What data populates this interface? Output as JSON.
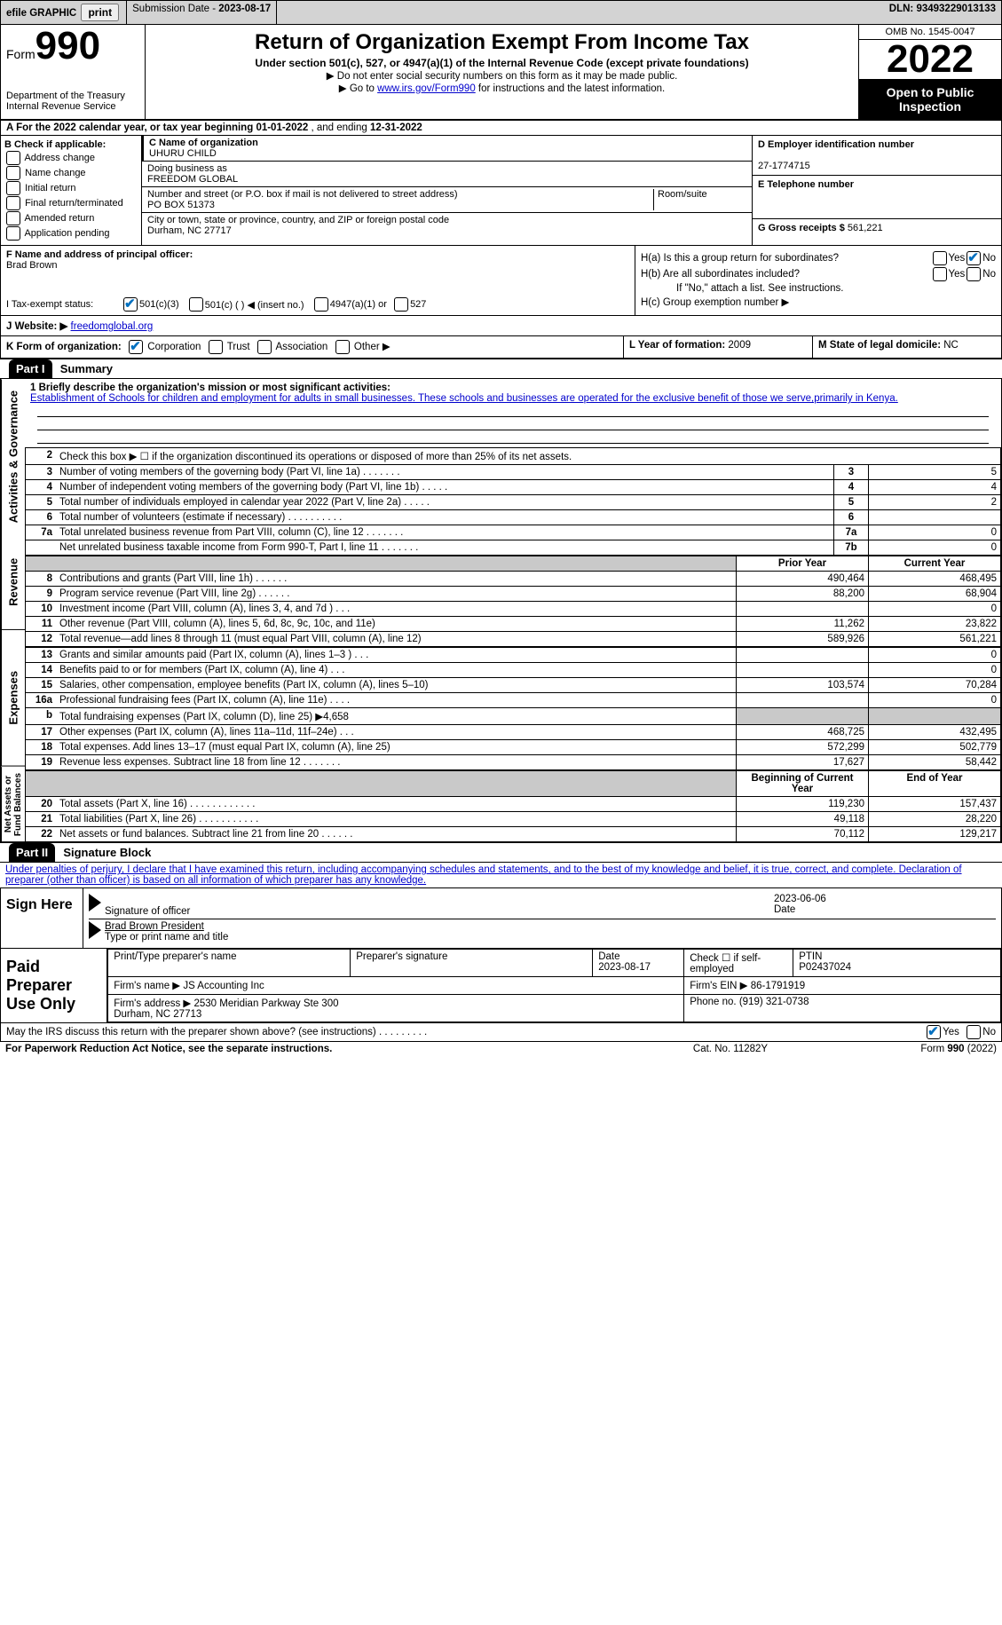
{
  "topbar": {
    "efile": "efile GRAPHIC",
    "print": "print",
    "submission_label": "Submission Date - ",
    "submission_date": "2023-08-17",
    "dln_label": "DLN: ",
    "dln": "93493229013133"
  },
  "header": {
    "form_label": "Form",
    "form_num": "990",
    "dept": "Department of the Treasury\nInternal Revenue Service",
    "title": "Return of Organization Exempt From Income Tax",
    "subtitle": "Under section 501(c), 527, or 4947(a)(1) of the Internal Revenue Code (except private foundations)",
    "note1": "▶ Do not enter social security numbers on this form as it may be made public.",
    "note2_pre": "▶ Go to ",
    "note2_link": "www.irs.gov/Form990",
    "note2_post": " for instructions and the latest information.",
    "omb": "OMB No. 1545-0047",
    "year": "2022",
    "open": "Open to Public Inspection"
  },
  "rowA": {
    "text_pre": "A For the 2022 calendar year, or tax year beginning ",
    "begin": "01-01-2022",
    "mid": " , and ending ",
    "end": "12-31-2022"
  },
  "colB": {
    "label": "B Check if applicable:",
    "items": [
      "Address change",
      "Name change",
      "Initial return",
      "Final return/terminated",
      "Amended return",
      "Application pending"
    ]
  },
  "colC": {
    "name_label": "C Name of organization",
    "name": "UHURU CHILD",
    "dba_label": "Doing business as",
    "dba": "FREEDOM GLOBAL",
    "addr_label": "Number and street (or P.O. box if mail is not delivered to street address)",
    "room_label": "Room/suite",
    "addr": "PO BOX 51373",
    "city_label": "City or town, state or province, country, and ZIP or foreign postal code",
    "city": "Durham, NC  27717"
  },
  "colD": {
    "ein_label": "D Employer identification number",
    "ein": "27-1774715",
    "phone_label": "E Telephone number",
    "gross_label": "G Gross receipts $ ",
    "gross": "561,221"
  },
  "rowF": {
    "label": "F  Name and address of principal officer:",
    "name": "Brad Brown"
  },
  "rowH": {
    "ha": "H(a)  Is this a group return for subordinates?",
    "hb": "H(b)  Are all subordinates included?",
    "hb_note": "If \"No,\" attach a list. See instructions.",
    "hc": "H(c)  Group exemption number ▶",
    "yes": "Yes",
    "no": "No"
  },
  "rowI": {
    "label": "I     Tax-exempt status:",
    "opts": [
      "501(c)(3)",
      "501(c) (   ) ◀ (insert no.)",
      "4947(a)(1) or",
      "527"
    ]
  },
  "rowJ": {
    "label": "J    Website: ▶  ",
    "site": "freedomglobal.org"
  },
  "rowK": {
    "label": "K Form of organization:",
    "opts": [
      "Corporation",
      "Trust",
      "Association",
      "Other ▶"
    ],
    "L_label": "L Year of formation: ",
    "L_val": "2009",
    "M_label": "M State of legal domicile: ",
    "M_val": "NC"
  },
  "part1": {
    "header": "Part I",
    "title": "Summary",
    "mission_label": "1   Briefly describe the organization's mission or most significant activities:",
    "mission": "Establishment of Schools for children and employment for adults in small businesses. These schools and businesses are operated for the exclusive benefit of those we serve,primarily in Kenya.",
    "line2": "Check this box ▶ ☐  if the organization discontinued its operations or disposed of more than 25% of its net assets.",
    "governance_label": "Activities & Governance",
    "revenue_label": "Revenue",
    "expenses_label": "Expenses",
    "netassets_label": "Net Assets or Fund Balances",
    "rows_gov": [
      {
        "n": "3",
        "d": "Number of voting members of the governing body (Part VI, line 1a)   .     .     .     .     .     .     .",
        "b": "3",
        "v": "5"
      },
      {
        "n": "4",
        "d": "Number of independent voting members of the governing body (Part VI, line 1b)  .     .     .     .     .",
        "b": "4",
        "v": "4"
      },
      {
        "n": "5",
        "d": "Total number of individuals employed in calendar year 2022 (Part V, line 2a)   .     .     .     .     .",
        "b": "5",
        "v": "2"
      },
      {
        "n": "6",
        "d": "Total number of volunteers (estimate if necessary)    .     .     .     .     .     .     .     .     .     .",
        "b": "6",
        "v": ""
      },
      {
        "n": "7a",
        "d": "Total unrelated business revenue from Part VIII, column (C), line 12    .     .     .     .     .     .     .",
        "b": "7a",
        "v": "0"
      },
      {
        "n": "",
        "d": "Net unrelated business taxable income from Form 990-T, Part I, line 11  .     .     .     .     .     .     .",
        "b": "7b",
        "v": "0"
      }
    ],
    "prior_hdr": "Prior Year",
    "current_hdr": "Current Year",
    "rows_rev": [
      {
        "n": "8",
        "d": "Contributions and grants (Part VIII, line 1h)   .     .     .     .     .     .",
        "p": "490,464",
        "c": "468,495"
      },
      {
        "n": "9",
        "d": "Program service revenue (Part VIII, line 2g)   .     .     .     .     .     .",
        "p": "88,200",
        "c": "68,904"
      },
      {
        "n": "10",
        "d": "Investment income (Part VIII, column (A), lines 3, 4, and 7d )   .     .     .",
        "p": "",
        "c": "0"
      },
      {
        "n": "11",
        "d": "Other revenue (Part VIII, column (A), lines 5, 6d, 8c, 9c, 10c, and 11e)",
        "p": "11,262",
        "c": "23,822"
      },
      {
        "n": "12",
        "d": "Total revenue—add lines 8 through 11 (must equal Part VIII, column (A), line 12)",
        "p": "589,926",
        "c": "561,221"
      }
    ],
    "rows_exp": [
      {
        "n": "13",
        "d": "Grants and similar amounts paid (Part IX, column (A), lines 1–3 )   .     .     .",
        "p": "",
        "c": "0"
      },
      {
        "n": "14",
        "d": "Benefits paid to or for members (Part IX, column (A), line 4)   .     .     .",
        "p": "",
        "c": "0"
      },
      {
        "n": "15",
        "d": "Salaries, other compensation, employee benefits (Part IX, column (A), lines 5–10)",
        "p": "103,574",
        "c": "70,284"
      },
      {
        "n": "16a",
        "d": "Professional fundraising fees (Part IX, column (A), line 11e)   .     .     .     .",
        "p": "",
        "c": "0"
      },
      {
        "n": "b",
        "d": "Total fundraising expenses (Part IX, column (D), line 25) ▶4,658",
        "p": "shaded",
        "c": "shaded"
      },
      {
        "n": "17",
        "d": "Other expenses (Part IX, column (A), lines 11a–11d, 11f–24e)   .     .     .",
        "p": "468,725",
        "c": "432,495"
      },
      {
        "n": "18",
        "d": "Total expenses. Add lines 13–17 (must equal Part IX, column (A), line 25)",
        "p": "572,299",
        "c": "502,779"
      },
      {
        "n": "19",
        "d": "Revenue less expenses. Subtract line 18 from line 12  .     .     .     .     .     .     .",
        "p": "17,627",
        "c": "58,442"
      }
    ],
    "begin_hdr": "Beginning of Current Year",
    "end_hdr": "End of Year",
    "rows_net": [
      {
        "n": "20",
        "d": "Total assets (Part X, line 16)  .     .     .     .     .     .     .     .     .     .     .     .",
        "p": "119,230",
        "c": "157,437"
      },
      {
        "n": "21",
        "d": "Total liabilities (Part X, line 26)  .     .     .     .     .     .     .     .     .     .     .",
        "p": "49,118",
        "c": "28,220"
      },
      {
        "n": "22",
        "d": "Net assets or fund balances. Subtract line 21 from line 20   .     .     .     .     .     .",
        "p": "70,112",
        "c": "129,217"
      }
    ]
  },
  "part2": {
    "header": "Part II",
    "title": "Signature Block",
    "decl": "Under penalties of perjury, I declare that I have examined this return, including accompanying schedules and statements, and to the best of my knowledge and belief, it is true, correct, and complete. Declaration of preparer (other than officer) is based on all information of which preparer has any knowledge.",
    "sign_here": "Sign Here",
    "sig_officer": "Signature of officer",
    "sig_date": "2023-06-06",
    "date_label": "Date",
    "officer_name": "Brad Brown  President",
    "type_label": "Type or print name and title",
    "paid_prep": "Paid Preparer Use Only",
    "prep_name_label": "Print/Type preparer's name",
    "prep_sig_label": "Preparer's signature",
    "prep_date_label": "Date",
    "prep_date": "2023-08-17",
    "check_self": "Check ☐ if self-employed",
    "ptin_label": "PTIN",
    "ptin": "P02437024",
    "firm_name_label": "Firm's name    ▶ ",
    "firm_name": "JS Accounting Inc",
    "firm_ein_label": "Firm's EIN ▶ ",
    "firm_ein": "86-1791919",
    "firm_addr_label": "Firm's address ▶ ",
    "firm_addr": "2530 Meridian Parkway Ste 300\nDurham, NC  27713",
    "phone_label": "Phone no. ",
    "phone": "(919) 321-0738",
    "discuss": "May the IRS discuss this return with the preparer shown above? (see instructions)   .     .     .     .     .     .     .     .     .",
    "yes": "Yes",
    "no": "No"
  },
  "footer": {
    "pra": "For Paperwork Reduction Act Notice, see the separate instructions.",
    "cat": "Cat. No. 11282Y",
    "form": "Form 990 (2022)"
  }
}
